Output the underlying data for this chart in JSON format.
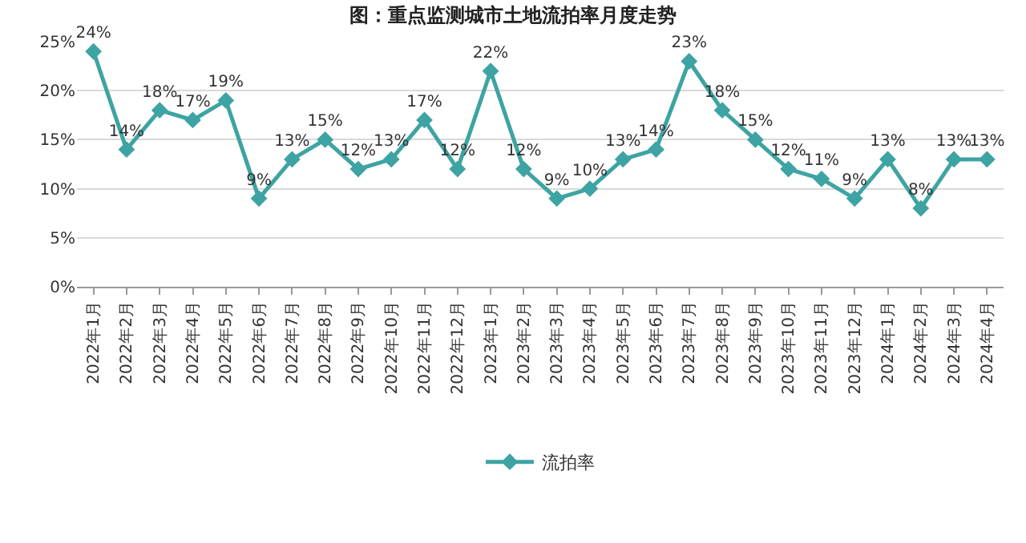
{
  "chart_data": {
    "type": "line",
    "title": "图：重点监测城市土地流拍率月度走势",
    "categories": [
      "2022年1月",
      "2022年2月",
      "2022年3月",
      "2022年4月",
      "2022年5月",
      "2022年6月",
      "2022年7月",
      "2022年8月",
      "2022年9月",
      "2022年10月",
      "2022年11月",
      "2022年12月",
      "2023年1月",
      "2023年2月",
      "2023年3月",
      "2023年4月",
      "2023年5月",
      "2023年6月",
      "2023年7月",
      "2023年8月",
      "2023年9月",
      "2023年10月",
      "2023年11月",
      "2023年12月",
      "2024年1月",
      "2024年2月",
      "2024年3月",
      "2024年4月"
    ],
    "series": [
      {
        "name": "流拍率",
        "color": "#3ea3a3",
        "values": [
          24,
          14,
          18,
          17,
          19,
          9,
          13,
          15,
          12,
          13,
          17,
          12,
          22,
          12,
          9,
          10,
          13,
          14,
          23,
          18,
          15,
          12,
          11,
          9,
          13,
          8,
          13,
          13
        ],
        "value_labels": [
          "24%",
          "14%",
          "18%",
          "17%",
          "19%",
          "9%",
          "13%",
          "15%",
          "12%",
          "13%",
          "17%",
          "12%",
          "22%",
          "12%",
          "9%",
          "10%",
          "13%",
          "14%",
          "23%",
          "18%",
          "15%",
          "12%",
          "11%",
          "9%",
          "13%",
          "8%",
          "13%",
          "13%"
        ]
      }
    ],
    "ylim": [
      0,
      25
    ],
    "yticks": [
      {
        "value": 0,
        "label": "0%"
      },
      {
        "value": 5,
        "label": "5%"
      },
      {
        "value": 10,
        "label": "10%"
      },
      {
        "value": 15,
        "label": "15%"
      },
      {
        "value": 20,
        "label": "20%"
      },
      {
        "value": 25,
        "label": "25%"
      }
    ],
    "grid": "y",
    "legend": "bottom",
    "marker": "diamond",
    "line_style": "solid"
  }
}
